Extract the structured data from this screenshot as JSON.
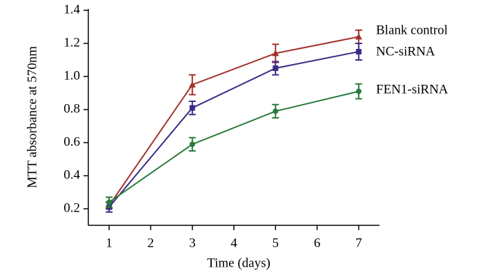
{
  "chart_data": {
    "type": "line",
    "x_label": "Time (days)",
    "y_label": "MTT absorbance at 570nm",
    "xlim": [
      0.5,
      7.5
    ],
    "xticks": [
      1,
      2,
      3,
      4,
      5,
      6,
      7
    ],
    "ylim": [
      0.1,
      1.4
    ],
    "yticks": [
      0.2,
      0.4,
      0.6,
      0.8,
      {
        "value": 1,
        "label": "1.0"
      },
      1.2,
      1.4
    ],
    "x": [
      1,
      3,
      5,
      7
    ],
    "series": [
      {
        "name": "Blank control",
        "color": "#a3302b",
        "marker": "triangle",
        "values": [
          0.22,
          0.95,
          1.14,
          1.24
        ],
        "errors": [
          0.02,
          0.06,
          0.055,
          0.04
        ]
      },
      {
        "name": "NC-siRNA",
        "color": "#3b2a86",
        "marker": "square",
        "values": [
          0.21,
          0.81,
          1.05,
          1.15
        ],
        "errors": [
          0.03,
          0.04,
          0.04,
          0.05
        ]
      },
      {
        "name": "FEN1-siRNA",
        "color": "#2b7a3b",
        "marker": "circle",
        "values": [
          0.24,
          0.59,
          0.79,
          0.91
        ],
        "errors": [
          0.03,
          0.04,
          0.04,
          0.045
        ]
      }
    ]
  }
}
